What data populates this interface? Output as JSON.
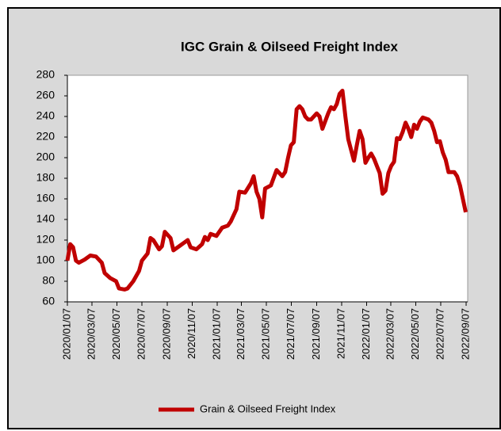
{
  "chart_data": {
    "type": "line",
    "title": "IGC Grain & Oilseed Freight Index",
    "x": [
      "2020/01/07",
      "2020/01/14",
      "2020/01/21",
      "2020/01/28",
      "2020/02/04",
      "2020/02/18",
      "2020/03/03",
      "2020/03/17",
      "2020/03/31",
      "2020/04/07",
      "2020/04/21",
      "2020/05/05",
      "2020/05/12",
      "2020/05/26",
      "2020/06/02",
      "2020/06/16",
      "2020/06/30",
      "2020/07/07",
      "2020/07/21",
      "2020/07/28",
      "2020/08/04",
      "2020/08/18",
      "2020/08/25",
      "2020/09/01",
      "2020/09/15",
      "2020/09/22",
      "2020/10/06",
      "2020/10/20",
      "2020/10/27",
      "2020/11/03",
      "2020/11/17",
      "2020/12/01",
      "2020/12/08",
      "2020/12/15",
      "2020/12/22",
      "2021/01/05",
      "2021/01/19",
      "2021/02/02",
      "2021/02/09",
      "2021/02/23",
      "2021/03/02",
      "2021/03/16",
      "2021/03/30",
      "2021/04/06",
      "2021/04/13",
      "2021/04/20",
      "2021/04/27",
      "2021/05/04",
      "2021/05/18",
      "2021/06/01",
      "2021/06/15",
      "2021/06/22",
      "2021/06/29",
      "2021/07/06",
      "2021/07/13",
      "2021/07/20",
      "2021/07/27",
      "2021/08/03",
      "2021/08/10",
      "2021/08/17",
      "2021/08/24",
      "2021/09/07",
      "2021/09/14",
      "2021/09/21",
      "2021/10/05",
      "2021/10/12",
      "2021/10/19",
      "2021/10/26",
      "2021/11/02",
      "2021/11/09",
      "2021/11/16",
      "2021/11/23",
      "2021/12/07",
      "2021/12/14",
      "2021/12/21",
      "2021/12/28",
      "2022/01/04",
      "2022/01/11",
      "2022/01/18",
      "2022/01/25",
      "2022/02/08",
      "2022/02/15",
      "2022/02/22",
      "2022/03/01",
      "2022/03/08",
      "2022/03/15",
      "2022/03/22",
      "2022/03/29",
      "2022/04/05",
      "2022/04/12",
      "2022/04/19",
      "2022/04/26",
      "2022/05/03",
      "2022/05/10",
      "2022/05/17",
      "2022/05/24",
      "2022/06/07",
      "2022/06/14",
      "2022/06/21",
      "2022/06/28",
      "2022/07/05",
      "2022/07/12",
      "2022/07/19",
      "2022/07/26",
      "2022/08/09",
      "2022/08/16",
      "2022/08/23",
      "2022/08/30",
      "2022/09/06"
    ],
    "series": [
      {
        "name": "Grain & Oilseed Freight Index",
        "color": "#c00000",
        "values": [
          100,
          116,
          113,
          100,
          98,
          101,
          105,
          104,
          98,
          88,
          83,
          80,
          73,
          72,
          73,
          80,
          90,
          100,
          107,
          122,
          120,
          111,
          114,
          128,
          122,
          110,
          114,
          118,
          120,
          113,
          111,
          116,
          123,
          120,
          126,
          124,
          132,
          134,
          138,
          150,
          167,
          166,
          175,
          182,
          167,
          160,
          142,
          170,
          173,
          188,
          182,
          186,
          200,
          212,
          215,
          247,
          250,
          247,
          240,
          237,
          237,
          243,
          240,
          228,
          243,
          249,
          247,
          252,
          262,
          265,
          240,
          218,
          197,
          212,
          226,
          218,
          195,
          200,
          204,
          199,
          185,
          165,
          168,
          185,
          192,
          196,
          219,
          218,
          225,
          234,
          228,
          220,
          232,
          228,
          235,
          239,
          237,
          234,
          226,
          215,
          216,
          205,
          198,
          186,
          186,
          182,
          173,
          160,
          147
        ]
      }
    ],
    "xlim": [
      "2020/01/07",
      "2022/09/07"
    ],
    "xticks": [
      "2020/01/07",
      "2020/03/07",
      "2020/05/07",
      "2020/07/07",
      "2020/09/07",
      "2020/11/07",
      "2021/01/07",
      "2021/03/07",
      "2021/05/07",
      "2021/07/07",
      "2021/09/07",
      "2021/11/07",
      "2022/01/07",
      "2022/03/07",
      "2022/05/07",
      "2022/07/07",
      "2022/09/07"
    ],
    "ylim": [
      60,
      280
    ],
    "yticks": [
      60,
      80,
      100,
      120,
      140,
      160,
      180,
      200,
      220,
      240,
      260,
      280
    ],
    "grid": false,
    "legend": "bottom"
  }
}
